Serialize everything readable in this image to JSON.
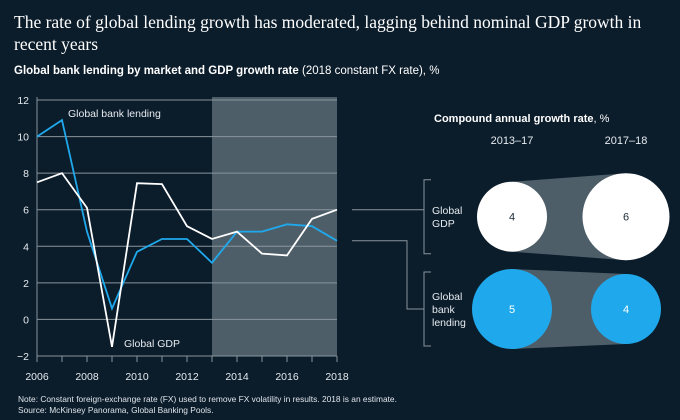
{
  "title": "The rate of global lending growth has moderated, lagging behind nominal GDP growth in recent years",
  "subtitle_bold": "Global bank lending by market and GDP growth rate",
  "subtitle_normal": " (2018 constant FX rate), %",
  "note": "Note: Constant foreign-exchange rate (FX) used to remove FX volatility in results. 2018 is an estimate.",
  "source": "Source: McKinsey Panorama, Global Banking Pools.",
  "colors": {
    "background": "#0b1c2b",
    "lending": "#1fa9ec",
    "gdp": "#ffffff",
    "shade": "#4e5e69",
    "grid": "#8a959d"
  },
  "chart_data": [
    {
      "type": "line",
      "title": "Global bank lending by market and GDP growth rate (2018 constant FX rate), %",
      "xlabel": "",
      "ylabel": "%",
      "x": [
        2006,
        2007,
        2008,
        2009,
        2010,
        2011,
        2012,
        2013,
        2014,
        2015,
        2016,
        2017,
        2018
      ],
      "xticks": [
        "2006",
        "2008",
        "2010",
        "2012",
        "2014",
        "2016",
        "2018"
      ],
      "yticks": [
        "12",
        "10",
        "8",
        "6",
        "4",
        "2",
        "0",
        "−2"
      ],
      "xlim": [
        2006,
        2018
      ],
      "ylim": [
        -2,
        12
      ],
      "grid": true,
      "shaded_range": [
        2013,
        2018
      ],
      "series": [
        {
          "name": "Global bank lending",
          "color": "#1fa9ec",
          "values": [
            10.0,
            10.9,
            4.8,
            0.6,
            3.7,
            4.4,
            4.4,
            3.1,
            4.8,
            4.8,
            5.2,
            5.1,
            4.3
          ]
        },
        {
          "name": "Global GDP",
          "color": "#ffffff",
          "values": [
            7.5,
            8.0,
            6.1,
            -1.5,
            7.45,
            7.4,
            5.1,
            4.4,
            4.8,
            3.6,
            3.5,
            5.5,
            6.0
          ]
        }
      ],
      "annotations": [
        "Global bank lending",
        "Global GDP"
      ]
    },
    {
      "type": "table",
      "title": "Compound annual growth rate, %",
      "title_bold": "Compound annual growth rate",
      "title_normal": ", %",
      "columns": [
        "2013–17",
        "2017–18"
      ],
      "rows": [
        {
          "label_lines": [
            "Global",
            "GDP"
          ],
          "values": [
            4,
            6
          ],
          "color": "#ffffff",
          "text_color": "#1b2a36"
        },
        {
          "label_lines": [
            "Global",
            "bank",
            "lending"
          ],
          "values": [
            5,
            4
          ],
          "color": "#1fa9ec",
          "text_color": "#ffffff"
        }
      ]
    }
  ]
}
